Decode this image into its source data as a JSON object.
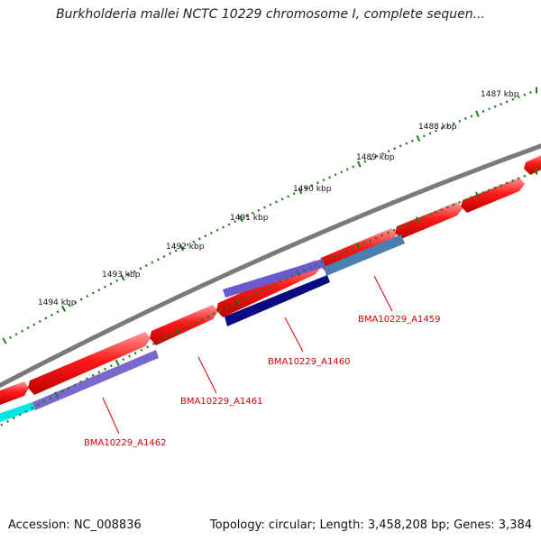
{
  "title": "Burkholderia mallei NCTC 10229 chromosome I, complete sequen...",
  "footer": {
    "accession": "Accession: NC_008836",
    "summary": "Topology: circular; Length: 3,458,208 bp; Genes: 3,384"
  },
  "ruler": {
    "labels": [
      "1487 kbp",
      "1488 kbp",
      "1489 kbp",
      "1490 kbp",
      "1491 kbp",
      "1492 kbp",
      "1493 kbp",
      "1494 kbp"
    ],
    "color": "#1a7a1a"
  },
  "tracks": {
    "backbone_color": "#7a7a7a",
    "forward_gene_color": "#ff1010",
    "feature_colors": [
      "#00e5e5",
      "#7b68cc",
      "#6a5acd",
      "#4a7fb0",
      "#0a0a80"
    ]
  },
  "gene_labels": [
    "BMA10229_A1459",
    "BMA10229_A1460",
    "BMA10229_A1461",
    "BMA10229_A1462"
  ]
}
